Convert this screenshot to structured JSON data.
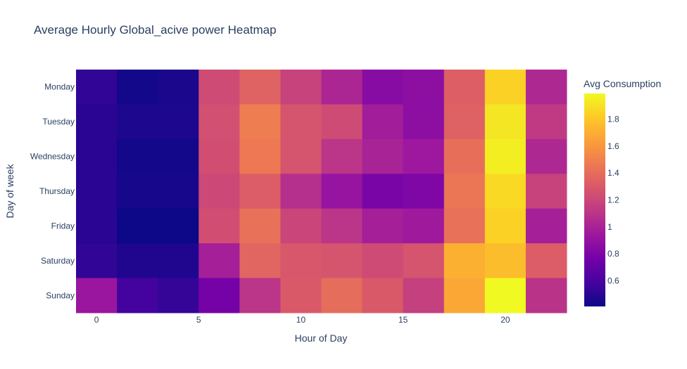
{
  "chart_data": {
    "type": "heatmap",
    "title": "Average Hourly Global_acive power Heatmap",
    "xlabel": "Hour of Day",
    "ylabel": "Day of week",
    "x_tick_labels": [
      "0",
      "5",
      "10",
      "15",
      "20"
    ],
    "x_ticks": [
      0,
      5,
      10,
      15,
      20
    ],
    "x_range": [
      -1,
      23
    ],
    "bin_width": 2,
    "x": [
      0,
      2,
      4,
      6,
      8,
      10,
      12,
      14,
      16,
      18,
      20,
      22
    ],
    "y_categories": [
      "Monday",
      "Tuesday",
      "Wednesday",
      "Thursday",
      "Friday",
      "Saturday",
      "Sunday"
    ],
    "z": [
      [
        0.52,
        0.43,
        0.45,
        1.22,
        1.35,
        1.18,
        1.02,
        0.85,
        0.87,
        1.33,
        1.84,
        1.03
      ],
      [
        0.5,
        0.46,
        0.46,
        1.25,
        1.48,
        1.27,
        1.22,
        0.97,
        0.87,
        1.34,
        1.92,
        1.13
      ],
      [
        0.5,
        0.43,
        0.43,
        1.24,
        1.46,
        1.27,
        1.1,
        1.0,
        0.94,
        1.41,
        1.95,
        1.03
      ],
      [
        0.5,
        0.44,
        0.44,
        1.21,
        1.32,
        1.07,
        0.91,
        0.79,
        0.81,
        1.45,
        1.87,
        1.18
      ],
      [
        0.5,
        0.41,
        0.41,
        1.24,
        1.42,
        1.19,
        1.1,
        0.98,
        0.95,
        1.42,
        1.84,
        0.98
      ],
      [
        0.52,
        0.47,
        0.47,
        0.98,
        1.36,
        1.29,
        1.27,
        1.22,
        1.27,
        1.71,
        1.76,
        1.32
      ],
      [
        0.93,
        0.58,
        0.53,
        0.77,
        1.1,
        1.3,
        1.4,
        1.3,
        1.16,
        1.67,
        1.99,
        1.09
      ]
    ],
    "zmin": 0.41,
    "zmax": 1.99,
    "colorbar": {
      "title": "Avg Consumption",
      "tick_values": [
        0.6,
        0.8,
        1.0,
        1.2,
        1.4,
        1.6,
        1.8
      ],
      "tick_labels": [
        "0.6",
        "0.8",
        "1",
        "1.2",
        "1.4",
        "1.6",
        "1.8"
      ]
    },
    "colorscale": [
      "#0d0887",
      "#46039f",
      "#7201a8",
      "#9c179e",
      "#bd3786",
      "#d8576b",
      "#ed7953",
      "#fb9f3a",
      "#fdca26",
      "#f0f921"
    ],
    "gridlines": false,
    "legend": "colorbar-right"
  }
}
